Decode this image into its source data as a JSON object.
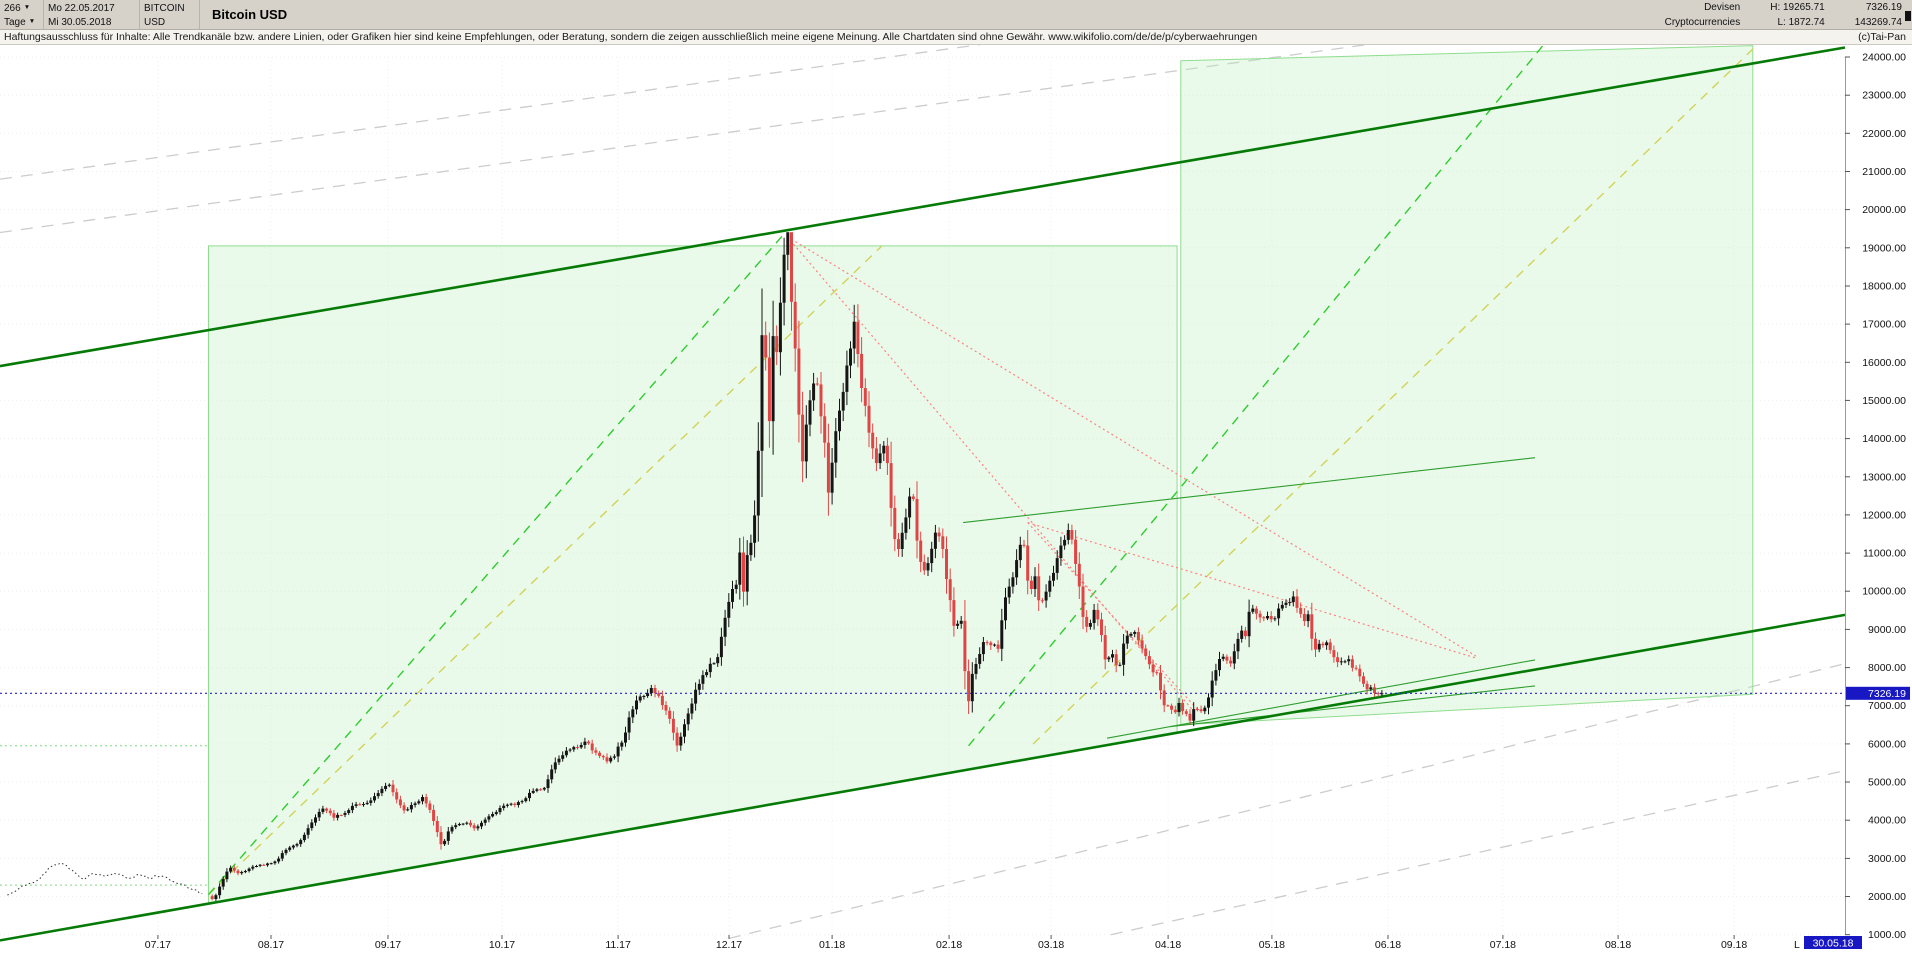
{
  "topbar": {
    "bars_count": "266",
    "start_date": "Mo 22.05.2017",
    "symbol": "BITCOIN",
    "timeframe": "Tage",
    "end_date": "Mi 30.05.2018",
    "currency": "USD",
    "title": "Bitcoin USD",
    "category_line1": "Devisen",
    "category_line2": "Cryptocurrencies",
    "high": "H: 19265.71",
    "low": "L: 1872.74",
    "last_price": "7326.19",
    "volume": "143269.74"
  },
  "disclaimer": {
    "text": "Haftungsausschluss für Inhalte: Alle Trendkanäle bzw. andere Linien, oder Grafiken hier sind keine Empfehlungen, oder Beratung, sondern die zeigen ausschließlich meine eigene Meinung. Alle Chartdaten sind ohne Gewähr.  www.wikifolio.com/de/de/p/cyberwaehrungen",
    "copyright": "(c)Tai-Pan"
  },
  "axis": {
    "price_ticks": [
      24000,
      23000,
      22000,
      21000,
      20000,
      19000,
      18000,
      17000,
      16000,
      15000,
      14000,
      13000,
      12000,
      11000,
      10000,
      9000,
      8000,
      7000,
      6000,
      5000,
      4000,
      3000,
      2000,
      1000
    ],
    "months": [
      {
        "label": "07.17",
        "t": 0.0856
      },
      {
        "label": "08.17",
        "t": 0.1469
      },
      {
        "label": "09.17",
        "t": 0.2103
      },
      {
        "label": "10.17",
        "t": 0.2721
      },
      {
        "label": "11.17",
        "t": 0.335
      },
      {
        "label": "12.17",
        "t": 0.3951
      },
      {
        "label": "01.18",
        "t": 0.451
      },
      {
        "label": "02.18",
        "t": 0.5144
      },
      {
        "label": "03.18",
        "t": 0.5697
      },
      {
        "label": "04.18",
        "t": 0.6331
      },
      {
        "label": "05.18",
        "t": 0.6894
      },
      {
        "label": "06.18",
        "t": 0.7523
      },
      {
        "label": "07.18",
        "t": 0.8146
      },
      {
        "label": "08.18",
        "t": 0.877
      },
      {
        "label": "09.18",
        "t": 0.9399
      }
    ],
    "current_price_label": "7326.19",
    "last_date_prefix": "L",
    "last_date_label": "30.05.18"
  },
  "chart_data": {
    "type": "candlestick",
    "title": "Bitcoin USD",
    "instrument": "BITCOIN USD",
    "period": "Tage",
    "high": 19265.71,
    "low": 1872.74,
    "last": 7326.19,
    "ylim": [
      500,
      24340
    ],
    "colors": {
      "up": "#151515",
      "down": "#e04545",
      "pre_line": "#333333"
    },
    "pre_series": [
      [
        0.004,
        2050
      ],
      [
        0.012,
        2250
      ],
      [
        0.02,
        2420
      ],
      [
        0.027,
        2750
      ],
      [
        0.033,
        2900
      ],
      [
        0.039,
        2680
      ],
      [
        0.045,
        2440
      ],
      [
        0.051,
        2620
      ],
      [
        0.057,
        2540
      ],
      [
        0.063,
        2610
      ],
      [
        0.069,
        2480
      ],
      [
        0.075,
        2560
      ],
      [
        0.081,
        2490
      ],
      [
        0.087,
        2560
      ],
      [
        0.093,
        2430
      ],
      [
        0.099,
        2300
      ],
      [
        0.105,
        2180
      ],
      [
        0.111,
        2060
      ]
    ],
    "close_waypoints": [
      [
        0.113,
        2010
      ],
      [
        0.116,
        1910
      ],
      [
        0.119,
        2280
      ],
      [
        0.124,
        2760
      ],
      [
        0.129,
        2620
      ],
      [
        0.134,
        2710
      ],
      [
        0.14,
        2810
      ],
      [
        0.148,
        2870
      ],
      [
        0.155,
        3210
      ],
      [
        0.162,
        3390
      ],
      [
        0.168,
        3860
      ],
      [
        0.172,
        4160
      ],
      [
        0.176,
        4330
      ],
      [
        0.181,
        4090
      ],
      [
        0.186,
        4160
      ],
      [
        0.192,
        4390
      ],
      [
        0.198,
        4410
      ],
      [
        0.205,
        4690
      ],
      [
        0.211,
        4960
      ],
      [
        0.215,
        4560
      ],
      [
        0.219,
        4260
      ],
      [
        0.224,
        4410
      ],
      [
        0.229,
        4610
      ],
      [
        0.234,
        4160
      ],
      [
        0.2395,
        3260
      ],
      [
        0.2425,
        3710
      ],
      [
        0.247,
        3860
      ],
      [
        0.252,
        3950
      ],
      [
        0.257,
        3810
      ],
      [
        0.262,
        3960
      ],
      [
        0.267,
        4160
      ],
      [
        0.272,
        4350
      ],
      [
        0.278,
        4410
      ],
      [
        0.284,
        4560
      ],
      [
        0.29,
        4790
      ],
      [
        0.295,
        4830
      ],
      [
        0.299,
        5360
      ],
      [
        0.303,
        5660
      ],
      [
        0.308,
        5860
      ],
      [
        0.313,
        5960
      ],
      [
        0.318,
        6060
      ],
      [
        0.323,
        5760
      ],
      [
        0.328,
        5560
      ],
      [
        0.333,
        5710
      ],
      [
        0.338,
        6160
      ],
      [
        0.343,
        6960
      ],
      [
        0.348,
        7260
      ],
      [
        0.353,
        7410
      ],
      [
        0.358,
        7160
      ],
      [
        0.363,
        6610
      ],
      [
        0.367,
        5960
      ],
      [
        0.371,
        6510
      ],
      [
        0.376,
        7260
      ],
      [
        0.381,
        7810
      ],
      [
        0.385,
        8060
      ],
      [
        0.389,
        8260
      ],
      [
        0.393,
        9310
      ],
      [
        0.396,
        9910
      ],
      [
        0.399,
        10210
      ],
      [
        0.401,
        11060
      ],
      [
        0.403,
        9910
      ],
      [
        0.405,
        10910
      ],
      [
        0.407,
        11260
      ],
      [
        0.409,
        11910
      ],
      [
        0.411,
        13710
      ],
      [
        0.413,
        16660
      ],
      [
        0.415,
        16260
      ],
      [
        0.417,
        14410
      ],
      [
        0.419,
        16710
      ],
      [
        0.4215,
        16310
      ],
      [
        0.4235,
        17910
      ],
      [
        0.4255,
        19110
      ],
      [
        0.427,
        19251
      ],
      [
        0.429,
        17710
      ],
      [
        0.432,
        15610
      ],
      [
        0.4345,
        13310
      ],
      [
        0.437,
        14310
      ],
      [
        0.44,
        15510
      ],
      [
        0.443,
        15310
      ],
      [
        0.446,
        14410
      ],
      [
        0.449,
        12610
      ],
      [
        0.452,
        13910
      ],
      [
        0.456,
        15010
      ],
      [
        0.46,
        16210
      ],
      [
        0.463,
        17110
      ],
      [
        0.467,
        15310
      ],
      [
        0.471,
        14210
      ],
      [
        0.475,
        13410
      ],
      [
        0.48,
        13810
      ],
      [
        0.484,
        11610
      ],
      [
        0.487,
        11110
      ],
      [
        0.491,
        11910
      ],
      [
        0.494,
        12810
      ],
      [
        0.498,
        10910
      ],
      [
        0.502,
        10510
      ],
      [
        0.506,
        11410
      ],
      [
        0.51,
        11510
      ],
      [
        0.5135,
        10110
      ],
      [
        0.517,
        9110
      ],
      [
        0.521,
        9260
      ],
      [
        0.5245,
        6960
      ],
      [
        0.527,
        7810
      ],
      [
        0.53,
        8260
      ],
      [
        0.533,
        8710
      ],
      [
        0.537,
        8610
      ],
      [
        0.541,
        8510
      ],
      [
        0.545,
        9810
      ],
      [
        0.549,
        10410
      ],
      [
        0.5525,
        11110
      ],
      [
        0.555,
        11260
      ],
      [
        0.558,
        9860
      ],
      [
        0.561,
        10310
      ],
      [
        0.564,
        9610
      ],
      [
        0.567,
        9960
      ],
      [
        0.57,
        10360
      ],
      [
        0.574,
        11010
      ],
      [
        0.578,
        11510
      ],
      [
        0.58,
        11660
      ],
      [
        0.583,
        10760
      ],
      [
        0.587,
        9310
      ],
      [
        0.59,
        9060
      ],
      [
        0.593,
        9560
      ],
      [
        0.596,
        9110
      ],
      [
        0.599,
        8260
      ],
      [
        0.603,
        8410
      ],
      [
        0.606,
        7910
      ],
      [
        0.609,
        8560
      ],
      [
        0.612,
        8960
      ],
      [
        0.616,
        8860
      ],
      [
        0.62,
        8460
      ],
      [
        0.624,
        7960
      ],
      [
        0.627,
        7810
      ],
      [
        0.63,
        7110
      ],
      [
        0.6335,
        6960
      ],
      [
        0.636,
        6760
      ],
      [
        0.639,
        7060
      ],
      [
        0.642,
        6840
      ],
      [
        0.645,
        6660
      ],
      [
        0.648,
        7010
      ],
      [
        0.651,
        6860
      ],
      [
        0.654,
        7060
      ],
      [
        0.6565,
        7610
      ],
      [
        0.659,
        7910
      ],
      [
        0.662,
        8360
      ],
      [
        0.666,
        8060
      ],
      [
        0.669,
        8360
      ],
      [
        0.672,
        8910
      ],
      [
        0.675,
        8860
      ],
      [
        0.678,
        9660
      ],
      [
        0.681,
        9360
      ],
      [
        0.684,
        9210
      ],
      [
        0.687,
        9340
      ],
      [
        0.69,
        9260
      ],
      [
        0.694,
        9660
      ],
      [
        0.698,
        9710
      ],
      [
        0.7,
        9860
      ],
      [
        0.703,
        9610
      ],
      [
        0.706,
        9260
      ],
      [
        0.709,
        9360
      ],
      [
        0.712,
        8460
      ],
      [
        0.715,
        8560
      ],
      [
        0.718,
        8710
      ],
      [
        0.721,
        8460
      ],
      [
        0.724,
        8260
      ],
      [
        0.727,
        8110
      ],
      [
        0.73,
        8260
      ],
      [
        0.733,
        8060
      ],
      [
        0.736,
        7960
      ],
      [
        0.739,
        7560
      ],
      [
        0.742,
        7460
      ],
      [
        0.745,
        7380
      ],
      [
        0.7475,
        7280
      ],
      [
        0.75,
        7326.19
      ]
    ],
    "overlays": {
      "channel": {
        "color": "#067a06",
        "width": 2.6,
        "lines": [
          [
            [
              0,
              15900
            ],
            [
              1,
              24250
            ]
          ],
          [
            [
              0,
              850
            ],
            [
              1,
              9380
            ]
          ]
        ]
      },
      "boxes": {
        "fill": "#bdeebd",
        "fill_opacity": 0.32,
        "stroke": "#8fdd8f",
        "polys": [
          [
            [
              0.113,
              19050
            ],
            [
              0.638,
              19050
            ],
            [
              0.638,
              6290
            ],
            [
              0.113,
              1815
            ]
          ],
          [
            [
              0.64,
              23900
            ],
            [
              0.95,
              24300
            ],
            [
              0.95,
              7300
            ],
            [
              0.64,
              6500
            ]
          ]
        ]
      },
      "green_dashed": {
        "color": "#2ecc2e",
        "width": 1.4,
        "dash": "9 7",
        "lines": [
          [
            [
              0.113,
              2050
            ],
            [
              0.4265,
              19450
            ]
          ],
          [
            [
              0.525,
              5950
            ],
            [
              0.838,
              24400
            ]
          ]
        ]
      },
      "yellow_dashed": {
        "color": "#d2d258",
        "width": 1.4,
        "dash": "9 7",
        "lines": [
          [
            [
              0.113,
              2050
            ],
            [
              0.478,
              19050
            ]
          ],
          [
            [
              0.56,
              6000
            ],
            [
              0.952,
              24300
            ]
          ]
        ]
      },
      "red_dotted": {
        "color": "#ff8080",
        "width": 1.2,
        "dash": "2 3",
        "lines": [
          [
            [
              0.4265,
              19300
            ],
            [
              0.8,
              8300
            ]
          ],
          [
            [
              0.4265,
              19300
            ],
            [
              0.648,
              6800
            ]
          ],
          [
            [
              0.557,
              11800
            ],
            [
              0.8,
              8250
            ]
          ],
          [
            [
              0.557,
              11800
            ],
            [
              0.65,
              6850
            ]
          ]
        ]
      },
      "thin_green": {
        "color": "#2f9e2f",
        "width": 1.1,
        "lines": [
          [
            [
              0.522,
              11800
            ],
            [
              0.832,
              13500
            ]
          ],
          [
            [
              0.6,
              6150
            ],
            [
              0.832,
              8200
            ]
          ],
          [
            [
              0.634,
              6450
            ],
            [
              0.832,
              7520
            ]
          ]
        ]
      },
      "gray_dashed": {
        "color": "#cccccc",
        "width": 1.3,
        "dash": "12 9",
        "lines": [
          [
            [
              0,
              19400
            ],
            [
              0.76,
              24450
            ]
          ],
          [
            [
              0,
              20800
            ],
            [
              0.55,
              24450
            ]
          ],
          [
            [
              0.395,
              900
            ],
            [
              1,
              8100
            ]
          ],
          [
            [
              0.602,
              1000
            ],
            [
              1,
              5300
            ]
          ]
        ]
      },
      "green_dotted_h": {
        "color": "#7fd87f",
        "width": 1,
        "dash": "2 3",
        "lines": [
          [
            [
              0,
              5950
            ],
            [
              0.113,
              5950
            ]
          ],
          [
            [
              0,
              2300
            ],
            [
              0.113,
              2300
            ]
          ]
        ]
      },
      "current_price_line": {
        "color": "#2020cc",
        "width": 1.2,
        "dash": "2 3",
        "price": 7326.19
      }
    }
  }
}
